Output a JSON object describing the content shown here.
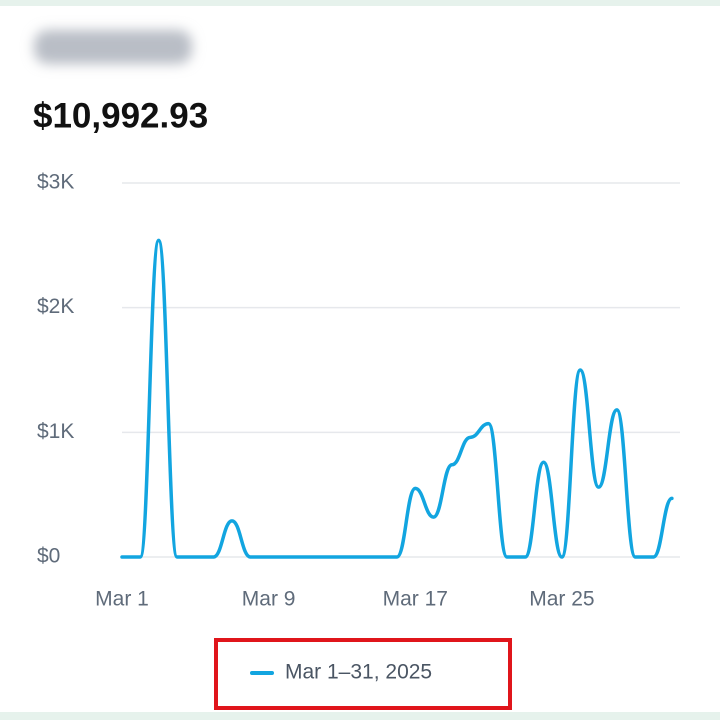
{
  "chart_data": {
    "type": "line",
    "title": "$10,992.93",
    "categories": [
      "Mar 1",
      null,
      null,
      null,
      null,
      null,
      null,
      null,
      "Mar 9",
      null,
      null,
      null,
      null,
      null,
      null,
      null,
      "Mar 17",
      null,
      null,
      null,
      null,
      null,
      null,
      null,
      "Mar 25",
      null,
      null,
      null,
      null,
      null,
      null
    ],
    "series": [
      {
        "name": "Mar 1–31, 2025",
        "color": "#12a5e0",
        "values": [
          0,
          0,
          2540,
          0,
          0,
          0,
          290,
          0,
          0,
          0,
          0,
          0,
          0,
          0,
          0,
          0,
          550,
          320,
          740,
          960,
          1070,
          0,
          0,
          760,
          0,
          1500,
          560,
          1180,
          0,
          0,
          470
        ]
      }
    ],
    "ylim": [
      0,
      3000
    ],
    "yticks": [
      {
        "value": 0,
        "label": "$0"
      },
      {
        "value": 1000,
        "label": "$1K"
      },
      {
        "value": 2000,
        "label": "$2K"
      },
      {
        "value": 3000,
        "label": "$3K"
      }
    ],
    "grid": true
  }
}
